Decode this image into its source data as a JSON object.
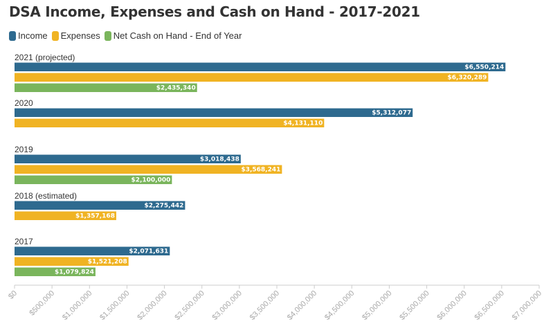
{
  "chart_data": {
    "type": "bar",
    "orientation": "horizontal",
    "title": "DSA Income, Expenses and Cash on Hand - 2017-2021",
    "legend": "top-left",
    "grid": false,
    "categories": [
      "2021 (projected)",
      "2020",
      "2019",
      "2018 (estimated)",
      "2017"
    ],
    "series": [
      {
        "name": "Income",
        "color": "#2e6a8f",
        "values": [
          6550214,
          5312077,
          3018438,
          2275442,
          2071631
        ],
        "labels": [
          "$6,550,214",
          "$5,312,077",
          "$3,018,438",
          "$2,275,442",
          "$2,071,631"
        ]
      },
      {
        "name": "Expenses",
        "color": "#f0b323",
        "values": [
          6320289,
          4131110,
          3568241,
          1357168,
          1521208
        ],
        "labels": [
          "$6,320,289",
          "$4,131,110",
          "$3,568,241",
          "$1,357,168",
          "$1,521,208"
        ]
      },
      {
        "name": "Net Cash on Hand - End of Year",
        "color": "#7ab55c",
        "values": [
          2435340,
          null,
          2100000,
          null,
          1079824
        ],
        "labels": [
          "$2,435,340",
          null,
          "$2,100,000",
          null,
          "$1,079,824"
        ]
      }
    ],
    "xlim": [
      0,
      7000000
    ],
    "xticks": [
      0,
      500000,
      1000000,
      1500000,
      2000000,
      2500000,
      3000000,
      3500000,
      4000000,
      4500000,
      5000000,
      5500000,
      6000000,
      6500000,
      7000000
    ],
    "xtick_labels": [
      "$0",
      "$500,000",
      "$1,000,000",
      "$1,500,000",
      "$2,000,000",
      "$2,500,000",
      "$3,000,000",
      "$3,500,000",
      "$4,000,000",
      "$4,500,000",
      "$5,000,000",
      "$5,500,000",
      "$6,000,000",
      "$6,500,000",
      "$7,000,000"
    ]
  }
}
